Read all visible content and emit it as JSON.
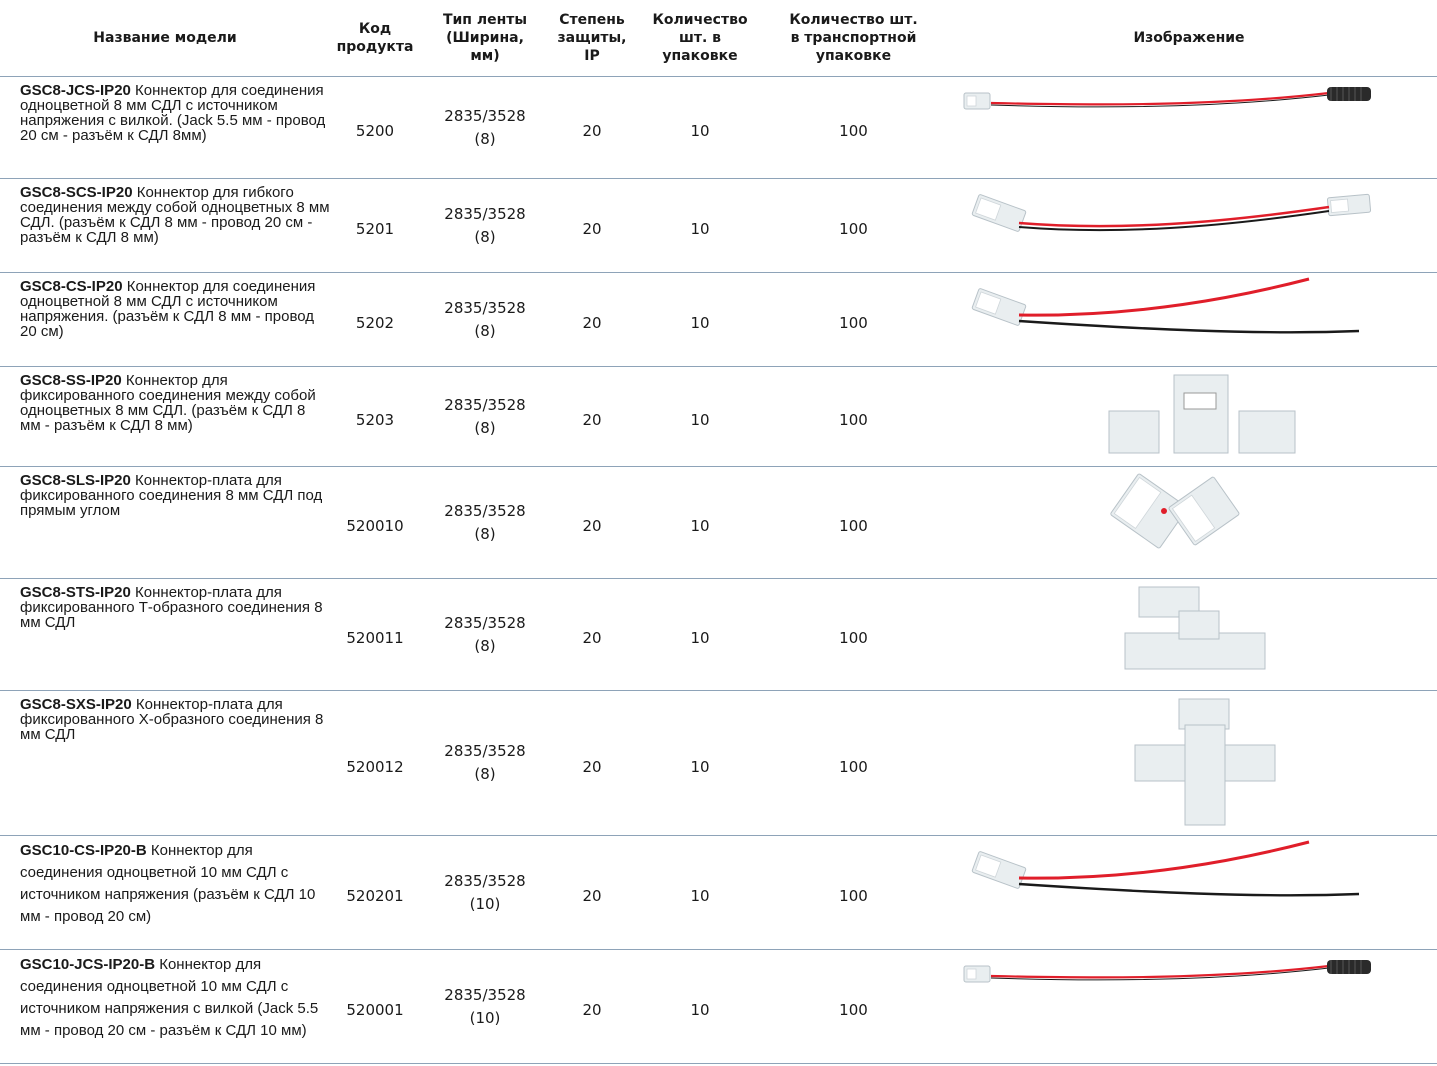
{
  "headers": {
    "name": "Название модели",
    "code": "Код продукта",
    "tape": "Тип ленты (Ширина, мм)",
    "ip": "Степень защиты, IP",
    "qty": "Количество шт. в упаковке",
    "transport": "Количество шт. в транспортной упаковке",
    "image": "Изображение"
  },
  "rows": [
    {
      "model": "GSC8-JCS-IP20",
      "desc": " Коннектор для соединения одноцветной 8 мм СДЛ с источником напряжения с вилкой. (Jack 5.5 мм - провод 20 см - разъём к СДЛ 8мм)",
      "code": "5200",
      "tape": "2835/3528",
      "width": "(8)",
      "ip": "20",
      "qty": "10",
      "transport": "100",
      "image": "connector-jack-cable-image"
    },
    {
      "model": "GSC8-SCS-IP20",
      "desc": " Коннектор для гибкого соединения между собой одноцветных 8 мм СДЛ. (разъём к СДЛ 8 мм - провод 20 см - разъём к СДЛ 8 мм)",
      "code": "5201",
      "tape": "2835/3528",
      "width": "(8)",
      "ip": "20",
      "qty": "10",
      "transport": "100",
      "image": "double-clip-cable-image"
    },
    {
      "model": "GSC8-CS-IP20",
      "desc": " Коннектор для соединения одноцветной 8 мм СДЛ с источником напряжения. (разъём к СДЛ 8 мм - провод 20 см)",
      "code": "5202",
      "tape": "2835/3528",
      "width": "(8)",
      "ip": "20",
      "qty": "10",
      "transport": "100",
      "image": "clip-open-wires-image"
    },
    {
      "model": "GSC8-SS-IP20",
      "desc": " Коннектор для фиксированного соединения между собой одноцветных 8 мм СДЛ. (разъём к СДЛ 8 мм - разъём к СДЛ 8 мм)",
      "code": "5203",
      "tape": "2835/3528",
      "width": "(8)",
      "ip": "20",
      "qty": "10",
      "transport": "100",
      "image": "straight-connector-image"
    },
    {
      "model": "GSC8-SLS-IP20",
      "desc": " Коннектор-плата для фиксированного соединения 8 мм СДЛ под прямым углом",
      "code": "520010",
      "tape": "2835/3528",
      "width": "(8)",
      "ip": "20",
      "qty": "10",
      "transport": "100",
      "image": "l-connector-image"
    },
    {
      "model": "GSC8-STS-IP20",
      "desc": " Коннектор-плата для фиксированного Т-образного соединения 8 мм СДЛ",
      "code": "520011",
      "tape": "2835/3528",
      "width": "(8)",
      "ip": "20",
      "qty": "10",
      "transport": "100",
      "image": "t-connector-image"
    },
    {
      "model": "GSC8-SXS-IP20",
      "desc": " Коннектор-плата для фиксированного Х-образного соединения 8 мм СДЛ",
      "code": "520012",
      "tape": "2835/3528",
      "width": "(8)",
      "ip": "20",
      "qty": "10",
      "transport": "100",
      "image": "x-connector-image"
    },
    {
      "model": "GSC10-CS-IP20-B",
      "desc": " Коннектор для соединения одноцветной 10 мм СДЛ с источником напряжения (разъём к СДЛ 10 мм - провод 20 см)",
      "code": "520201",
      "tape": "2835/3528",
      "width": "(10)",
      "ip": "20",
      "qty": "10",
      "transport": "100",
      "image": "clip-open-wires-image"
    },
    {
      "model": "GSC10-JCS-IP20-B",
      "desc": " Коннектор для соединения одноцветной 10 мм СДЛ с источником напряжения с вилкой (Jack 5.5 мм - провод 20 см - разъём к СДЛ 10 мм)",
      "code": "520001",
      "tape": "2835/3528",
      "width": "(10)",
      "ip": "20",
      "qty": "10",
      "transport": "100",
      "image": "connector-jack-cable-image"
    }
  ],
  "colors": {
    "rule": "#8ea3b8",
    "wire_red": "#e01e2a",
    "wire_black": "#1a1a1a",
    "plastic": "#e9eef0"
  }
}
